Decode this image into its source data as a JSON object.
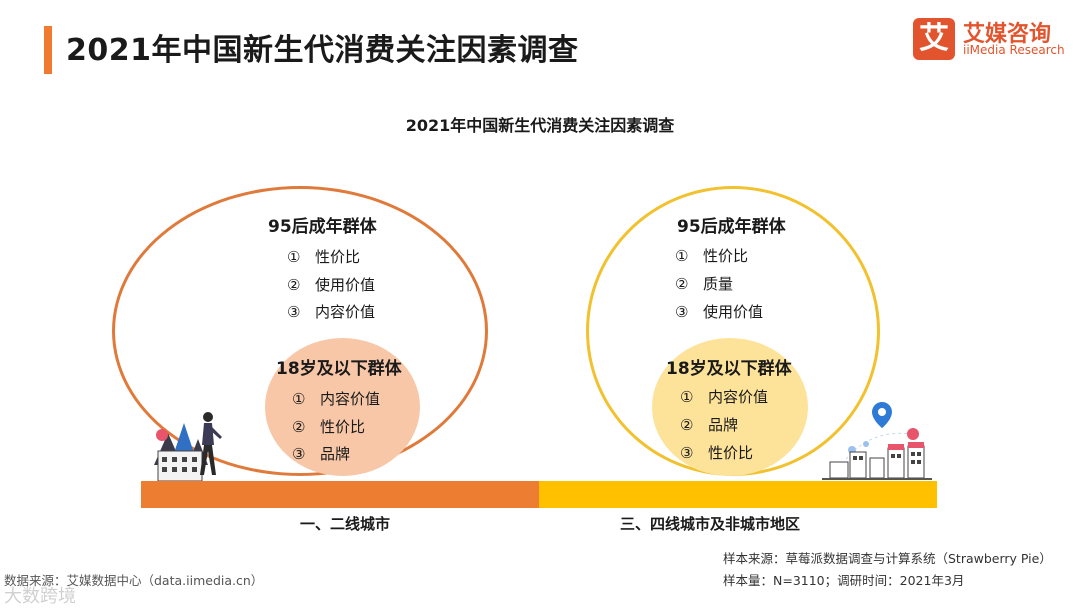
{
  "header": {
    "title": "2021年中国新生代消费关注因素调查",
    "accent_color": "#f07b2f"
  },
  "logo": {
    "mark": "艾",
    "name_cn": "艾媒咨询",
    "name_en": "iiMedia Research",
    "color": "#e2542d"
  },
  "chart": {
    "title": "2021年中国新生代消费关注因素调查",
    "regions": [
      {
        "label": "一、二线城市",
        "bar_color": "#ed7d31",
        "outer_circle_color": "#e07a3a",
        "inner_circle_color": "#f7c7a7",
        "outer_group": {
          "title": "95后成年群体",
          "items": [
            {
              "num": "①",
              "text": "性价比"
            },
            {
              "num": "②",
              "text": "使用价值"
            },
            {
              "num": "③",
              "text": "内容价值"
            }
          ]
        },
        "inner_group": {
          "title": "18岁及以下群体",
          "items": [
            {
              "num": "①",
              "text": "内容价值"
            },
            {
              "num": "②",
              "text": "性价比"
            },
            {
              "num": "③",
              "text": "品牌"
            }
          ]
        }
      },
      {
        "label": "三、四线城市及非城市地区",
        "bar_color": "#ffc000",
        "outer_circle_color": "#f2c12e",
        "inner_circle_color": "#fde39a",
        "outer_group": {
          "title": "95后成年群体",
          "items": [
            {
              "num": "①",
              "text": "性价比"
            },
            {
              "num": "②",
              "text": "质量"
            },
            {
              "num": "③",
              "text": "使用价值"
            }
          ]
        },
        "inner_group": {
          "title": "18岁及以下群体",
          "items": [
            {
              "num": "①",
              "text": "内容价值"
            },
            {
              "num": "②",
              "text": "品牌"
            },
            {
              "num": "③",
              "text": "性价比"
            }
          ]
        }
      }
    ]
  },
  "footer": {
    "data_source": "数据来源：艾媒数据中心（data.iimedia.cn）",
    "sample_source": "样本来源：草莓派数据调查与计算系统（Strawberry Pie）",
    "sample_size": "样本量：N=3110；调研时间：2021年3月",
    "watermark": "大数跨境"
  }
}
